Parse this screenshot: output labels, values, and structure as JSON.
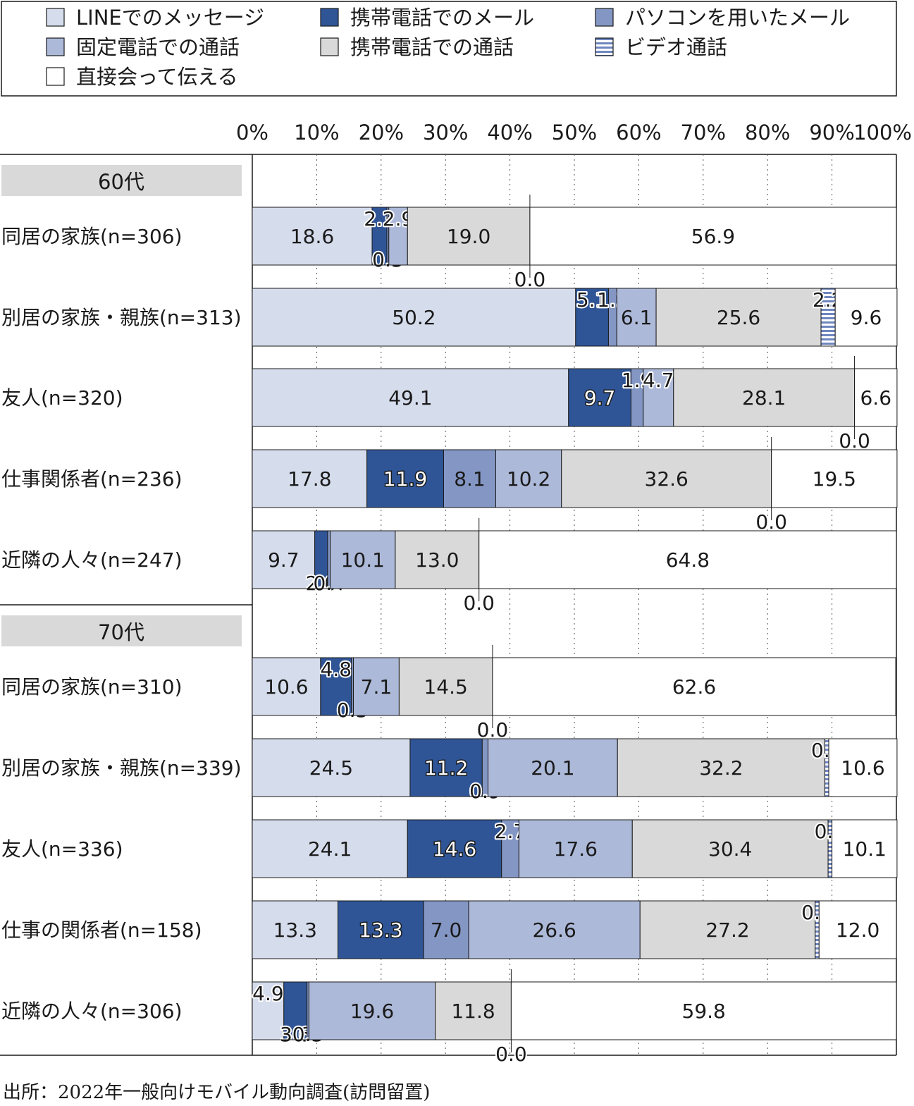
{
  "chart_data": {
    "type": "bar",
    "orientation": "horizontal",
    "stacked": true,
    "source": "出所：2022年一般向けモバイル動向調査(訪問留置)",
    "xlim": [
      0,
      100
    ],
    "x_ticks": [
      "0%",
      "10%",
      "20%",
      "30%",
      "40%",
      "50%",
      "60%",
      "70%",
      "80%",
      "90%",
      "100%"
    ],
    "grid": "vertical dotted",
    "legend_position": "top",
    "series": [
      {
        "name": "LINEでのメッセージ",
        "color": "#d5dcec"
      },
      {
        "name": "携帯電話でのメール",
        "color": "#2f5597"
      },
      {
        "name": "パソコンを用いたメール",
        "color": "#8497c4"
      },
      {
        "name": "固定電話での通話",
        "color": "#adb9d9"
      },
      {
        "name": "携帯電話での通話",
        "color": "#d9d9d9"
      },
      {
        "name": "ビデオ通話",
        "color": "#8fa4d0",
        "pattern": "horizontal-stripes"
      },
      {
        "name": "直接会って伝える",
        "color": "#ffffff"
      }
    ],
    "legend_order": [
      0,
      1,
      2,
      3,
      4,
      5,
      6
    ],
    "groups": [
      {
        "label": "60代",
        "rows": [
          {
            "label": "同居の家族(n=306)",
            "values": [
              18.6,
              2.3,
              0.3,
              2.9,
              19.0,
              0.0,
              56.9
            ]
          },
          {
            "label": "別居の家族・親族(n=313)",
            "values": [
              50.2,
              5.1,
              1.3,
              6.1,
              25.6,
              2.2,
              9.6
            ]
          },
          {
            "label": "友人(n=320)",
            "values": [
              49.1,
              9.7,
              1.9,
              4.7,
              28.1,
              0.0,
              6.6
            ]
          },
          {
            "label": "仕事関係者(n=236)",
            "values": [
              17.8,
              11.9,
              8.1,
              10.2,
              32.6,
              0.0,
              19.5
            ]
          },
          {
            "label": "近隣の人々(n=247)",
            "values": [
              9.7,
              2.0,
              0.4,
              10.1,
              13.0,
              0.0,
              64.8
            ]
          }
        ]
      },
      {
        "label": "70代",
        "rows": [
          {
            "label": "同居の家族(n=310)",
            "values": [
              10.6,
              4.8,
              0.3,
              7.1,
              14.5,
              0.0,
              62.6
            ]
          },
          {
            "label": "別居の家族・親族(n=339)",
            "values": [
              24.5,
              11.2,
              0.9,
              20.1,
              32.2,
              0.6,
              10.6
            ]
          },
          {
            "label": "友人(n=336)",
            "values": [
              24.1,
              14.6,
              2.7,
              17.6,
              30.4,
              0.6,
              10.1
            ]
          },
          {
            "label": "仕事の関係者(n=158)",
            "values": [
              13.3,
              13.3,
              7.0,
              26.6,
              27.2,
              0.6,
              12.0
            ]
          },
          {
            "label": "近隣の人々(n=306)",
            "values": [
              4.9,
              3.6,
              0.3,
              19.6,
              11.8,
              0.0,
              59.8
            ]
          }
        ]
      }
    ]
  }
}
